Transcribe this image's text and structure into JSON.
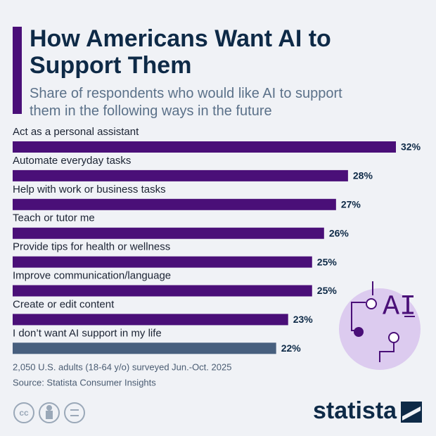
{
  "chart_data": {
    "type": "bar",
    "title": "How Americans Want AI to Support Them",
    "subtitle": "Share of respondents who would like AI to support them in the following ways in the future",
    "categories": [
      "Act as a personal assistant",
      "Automate everyday tasks",
      "Help with work or business tasks",
      "Teach or tutor me",
      "Provide tips for health or wellness",
      "Improve communication/language",
      "Create or edit content",
      "I don’t want AI support in my life"
    ],
    "values": [
      32,
      28,
      27,
      26,
      25,
      25,
      23,
      22
    ],
    "value_labels": [
      "32%",
      "28%",
      "27%",
      "26%",
      "25%",
      "25%",
      "23%",
      "22%"
    ],
    "colors": [
      "#4a0f78",
      "#4a0f78",
      "#4a0f78",
      "#4a0f78",
      "#4a0f78",
      "#4a0f78",
      "#4a0f78",
      "#475f7e"
    ],
    "note": "2,050 U.S. adults (18-64 y/o) surveyed Jun.-Oct. 2025",
    "source": "Source: Statista Consumer Insights",
    "illustration_label": "AI",
    "license_label": "cc",
    "brand": "statista"
  }
}
